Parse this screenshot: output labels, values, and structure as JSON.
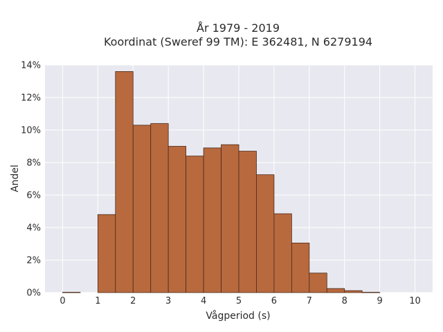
{
  "chart_data": {
    "type": "bar",
    "title_lines": [
      "År 1979 - 2019",
      "Koordinat (Sweref 99 TM): E 362481, N 6279194"
    ],
    "xlabel": "Vågperiod (s)",
    "ylabel": "Andel",
    "xlim": [
      -0.5,
      10.5
    ],
    "ylim": [
      0,
      14
    ],
    "x_ticks": [
      0,
      1,
      2,
      3,
      4,
      5,
      6,
      7,
      8,
      9,
      10
    ],
    "x_tick_labels": [
      "0",
      "1",
      "2",
      "3",
      "4",
      "5",
      "6",
      "7",
      "8",
      "9",
      "10"
    ],
    "y_ticks": [
      0,
      2,
      4,
      6,
      8,
      10,
      12,
      14
    ],
    "y_tick_labels": [
      "0%",
      "2%",
      "4%",
      "6%",
      "8%",
      "10%",
      "12%",
      "14%"
    ],
    "bin_width": 0.5,
    "bins": [
      {
        "start": 0.0,
        "value": 0.02
      },
      {
        "start": 0.5,
        "value": 0.0
      },
      {
        "start": 1.0,
        "value": 4.8
      },
      {
        "start": 1.5,
        "value": 13.6
      },
      {
        "start": 2.0,
        "value": 10.3
      },
      {
        "start": 2.5,
        "value": 10.4
      },
      {
        "start": 3.0,
        "value": 9.0
      },
      {
        "start": 3.5,
        "value": 8.4
      },
      {
        "start": 4.0,
        "value": 8.9
      },
      {
        "start": 4.5,
        "value": 9.1
      },
      {
        "start": 5.0,
        "value": 8.7
      },
      {
        "start": 5.5,
        "value": 7.25
      },
      {
        "start": 6.0,
        "value": 4.85
      },
      {
        "start": 6.5,
        "value": 3.05
      },
      {
        "start": 7.0,
        "value": 1.2
      },
      {
        "start": 7.5,
        "value": 0.25
      },
      {
        "start": 8.0,
        "value": 0.12
      },
      {
        "start": 8.5,
        "value": 0.02
      }
    ],
    "grid": true,
    "colors": {
      "bar_fill": "#b8693e",
      "bar_edge": "#4a2a18",
      "plot_background": "#e8e8f0",
      "grid": "#ffffff"
    }
  }
}
